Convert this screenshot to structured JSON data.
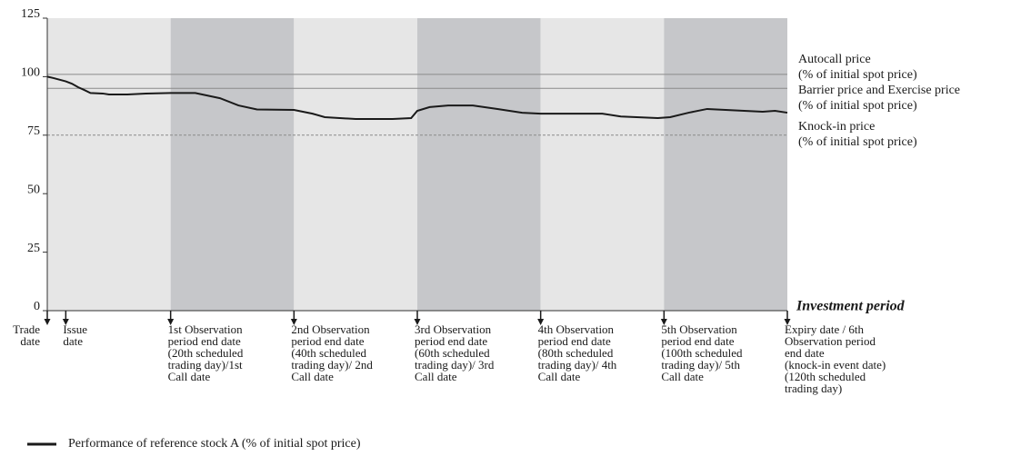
{
  "chart_data": {
    "type": "line",
    "xlim": [
      0,
      120
    ],
    "ylim": [
      0,
      125
    ],
    "yticks": [
      0,
      25,
      50,
      75,
      100,
      125
    ],
    "x_axis_label": "Investment period",
    "band_colors": [
      "#e6e6e6",
      "#c6c7ca"
    ],
    "series": [
      {
        "name": "Performance of reference stock A (% of initial spot price)",
        "color": "#1a1a1a",
        "x": [
          0,
          1,
          3,
          4,
          5,
          6,
          7,
          9,
          10,
          13,
          16,
          20,
          24,
          28,
          31,
          34,
          40,
          43,
          45,
          50,
          56,
          59,
          60,
          62,
          65,
          69,
          73,
          77,
          80,
          90,
          93,
          99,
          101,
          104,
          107,
          110,
          116,
          118,
          120
        ],
        "values": [
          100,
          99.4,
          98,
          97,
          95.5,
          94.3,
          93,
          92.8,
          92.4,
          92.4,
          92.8,
          93,
          93,
          90.8,
          87.7,
          86,
          85.8,
          84.2,
          82.7,
          81.9,
          81.9,
          82.3,
          85.4,
          87,
          87.7,
          87.7,
          86.2,
          84.6,
          84.2,
          84.2,
          83,
          82.3,
          82.7,
          84.6,
          86.2,
          85.8,
          85,
          85.4,
          84.6
        ]
      }
    ],
    "reference_lines": [
      {
        "value": 101,
        "style": "solid",
        "color": "#8a8a8a",
        "label_lines": [
          "Autocall price",
          "(% of initial spot price)"
        ]
      },
      {
        "value": 95,
        "style": "solid",
        "color": "#8a8a8a",
        "label_lines": [
          "Barrier price and Exercise price",
          "(% of initial spot price)"
        ]
      },
      {
        "value": 75,
        "style": "dashed",
        "color": "#8a8a8a",
        "label_lines": [
          "Knock-in price",
          "(% of initial spot price)"
        ]
      }
    ],
    "events": [
      {
        "x": 0,
        "label_lines": [
          "Trade",
          "date"
        ]
      },
      {
        "x": 3,
        "label_lines": [
          "Issue",
          "date"
        ]
      },
      {
        "x": 20,
        "label_lines": [
          "1st Observation",
          "period end date",
          "(20th scheduled",
          "trading day)/1st",
          "Call date"
        ]
      },
      {
        "x": 40,
        "label_lines": [
          "2nd Observation",
          "period end date",
          "(40th scheduled",
          "trading day)/ 2nd",
          "Call date"
        ]
      },
      {
        "x": 60,
        "label_lines": [
          "3rd Observation",
          "period end date",
          "(60th scheduled",
          "trading day)/ 3rd",
          "Call date"
        ]
      },
      {
        "x": 80,
        "label_lines": [
          "4th Observation",
          "period end date",
          "(80th scheduled",
          "trading day)/ 4th",
          "Call date"
        ]
      },
      {
        "x": 100,
        "label_lines": [
          "5th Observation",
          "period end date",
          "(100th scheduled",
          "trading day)/ 5th",
          "Call date"
        ]
      },
      {
        "x": 120,
        "label_lines": [
          "Expiry date / 6th",
          "Observation period",
          "end date",
          "(knock-in event date)",
          "(120th scheduled",
          "trading day)"
        ]
      }
    ]
  }
}
